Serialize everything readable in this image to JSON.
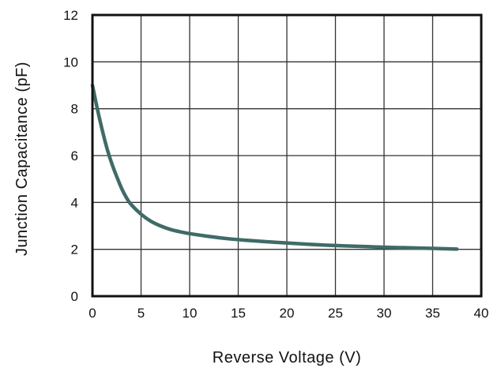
{
  "chart_data": {
    "type": "line",
    "xlabel": "Reverse Voltage (V)",
    "ylabel": "Junction Capacitance (pF)",
    "xlim": [
      0,
      40
    ],
    "ylim": [
      0,
      12
    ],
    "xticks": [
      "0",
      "5",
      "10",
      "15",
      "20",
      "25",
      "30",
      "35",
      "40"
    ],
    "yticks": [
      "0",
      "2",
      "4",
      "6",
      "8",
      "10",
      "12"
    ],
    "grid": true,
    "legend": "none",
    "series": [
      {
        "color": "#3f6b68",
        "x": [
          0,
          0.5,
          1,
          1.5,
          2,
          2.5,
          3,
          3.5,
          4,
          5,
          6,
          7,
          8,
          9,
          10,
          12,
          14,
          16,
          18,
          20,
          22,
          25,
          28,
          30,
          33,
          35,
          37.5
        ],
        "y": [
          9.0,
          8.0,
          7.1,
          6.3,
          5.65,
          5.1,
          4.6,
          4.2,
          3.9,
          3.5,
          3.2,
          3.0,
          2.85,
          2.75,
          2.67,
          2.55,
          2.45,
          2.38,
          2.32,
          2.27,
          2.22,
          2.16,
          2.12,
          2.09,
          2.06,
          2.04,
          2.01
        ]
      }
    ]
  }
}
